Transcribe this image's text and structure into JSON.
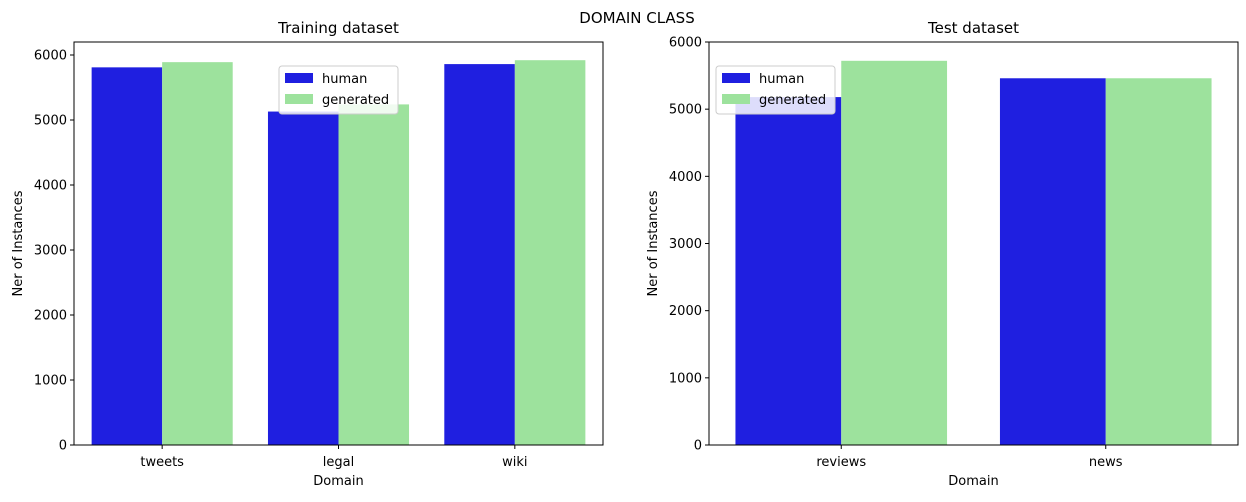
{
  "figure": {
    "suptitle": "DOMAIN CLASS"
  },
  "chart_data": [
    {
      "type": "bar",
      "title": "Training dataset",
      "xlabel": "Domain",
      "ylabel": "Ner of Instances",
      "categories": [
        "tweets",
        "legal",
        "wiki"
      ],
      "series": [
        {
          "name": "human",
          "color": "#1f1fe0",
          "values": [
            5810,
            5130,
            5860
          ]
        },
        {
          "name": "generated",
          "color": "#9de29d",
          "values": [
            5890,
            5240,
            5920
          ]
        }
      ],
      "ylim": [
        0,
        6200
      ],
      "yticks": [
        0,
        1000,
        2000,
        3000,
        4000,
        5000,
        6000
      ],
      "legend": "top-center",
      "grid": false
    },
    {
      "type": "bar",
      "title": "Test dataset",
      "xlabel": "Domain",
      "ylabel": "Ner of Instances",
      "categories": [
        "reviews",
        "news"
      ],
      "series": [
        {
          "name": "human",
          "color": "#1f1fe0",
          "values": [
            5180,
            5460
          ]
        },
        {
          "name": "generated",
          "color": "#9de29d",
          "values": [
            5720,
            5460
          ]
        }
      ],
      "ylim": [
        0,
        6000
      ],
      "yticks": [
        0,
        1000,
        2000,
        3000,
        4000,
        5000,
        6000
      ],
      "legend": "top-left",
      "grid": false
    }
  ]
}
